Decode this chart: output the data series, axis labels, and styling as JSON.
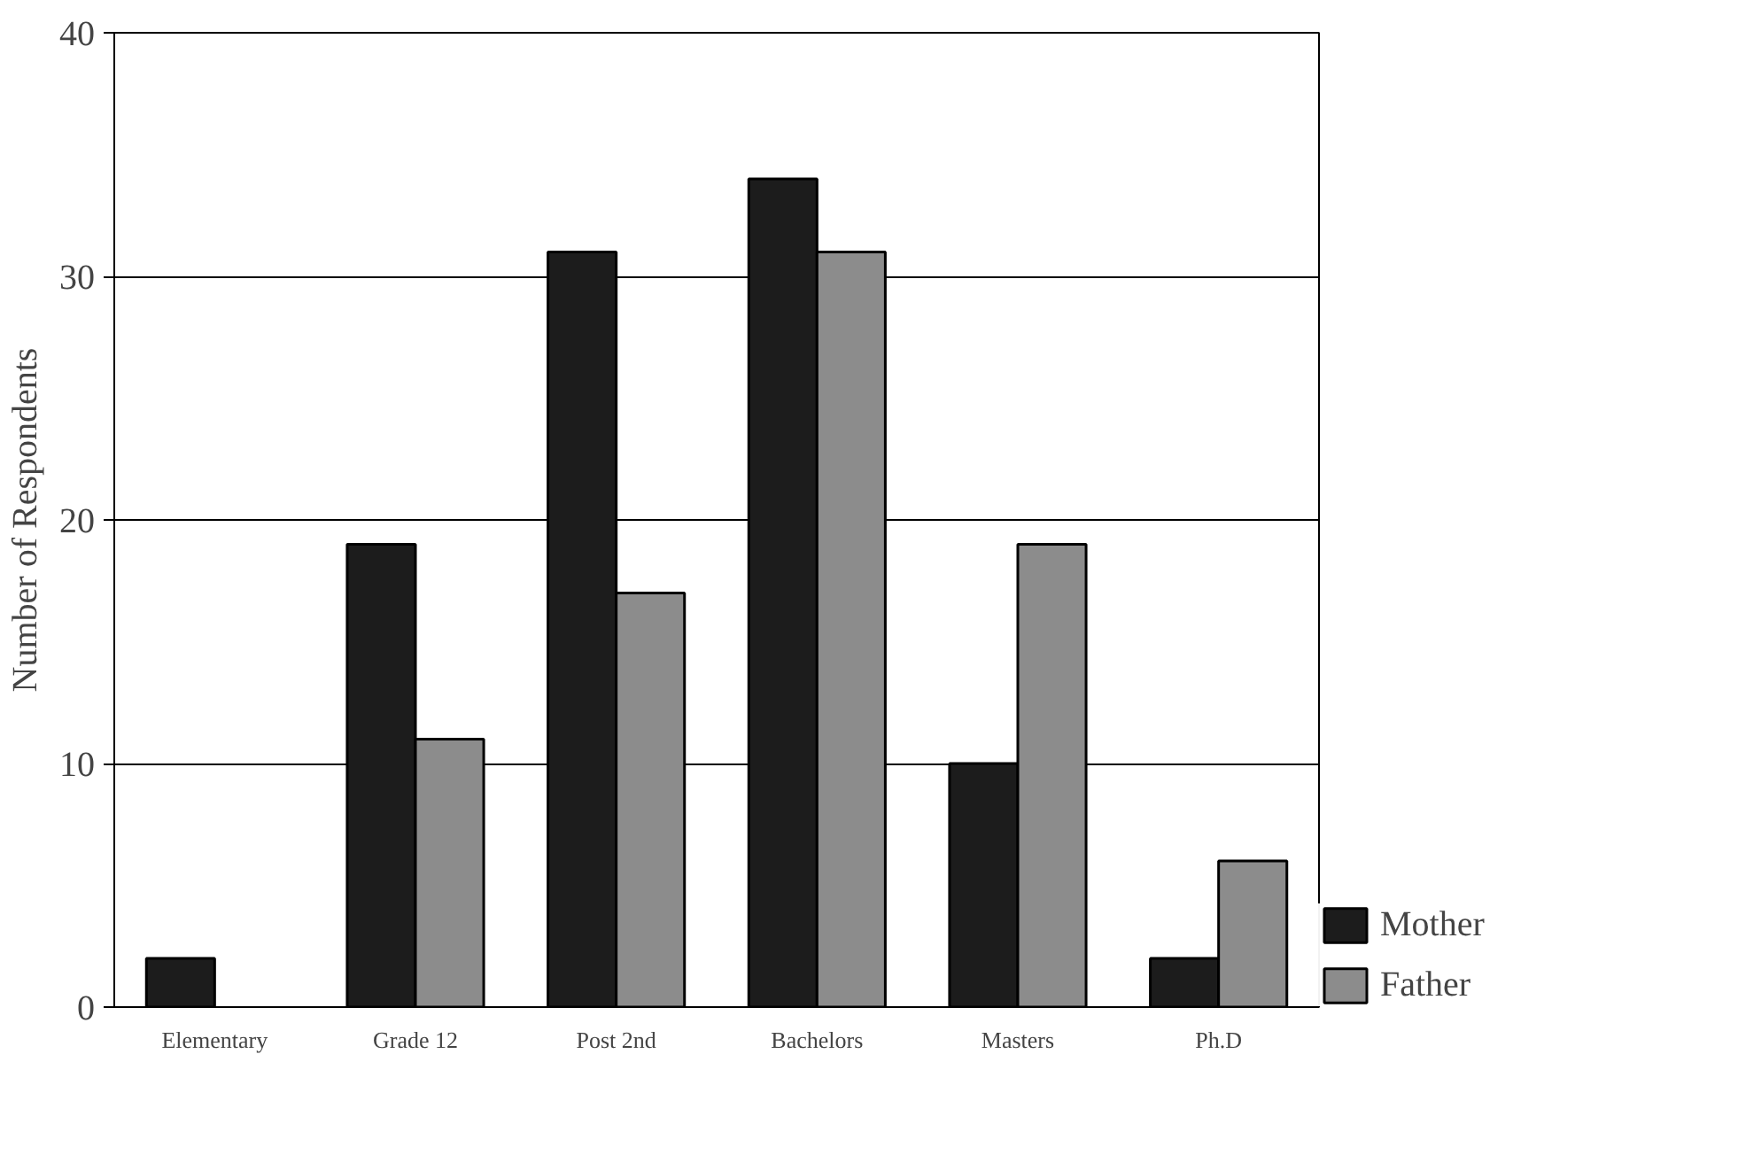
{
  "chart_data": {
    "type": "bar",
    "ylabel": "Number of Respondents",
    "categories": [
      "Elementary",
      "Grade 12",
      "Post 2nd",
      "Bachelors",
      "Masters",
      "Ph.D"
    ],
    "series": [
      {
        "name": "Mother",
        "color": "#1c1c1c",
        "values": [
          2,
          19,
          31,
          34,
          10,
          2
        ]
      },
      {
        "name": "Father",
        "color": "#8c8c8c",
        "values": [
          null,
          11,
          17,
          31,
          19,
          6
        ]
      }
    ],
    "ylim": [
      0,
      40
    ],
    "yticks": [
      0,
      10,
      20,
      30,
      40
    ],
    "grid": "y",
    "legend": "bottom right"
  }
}
